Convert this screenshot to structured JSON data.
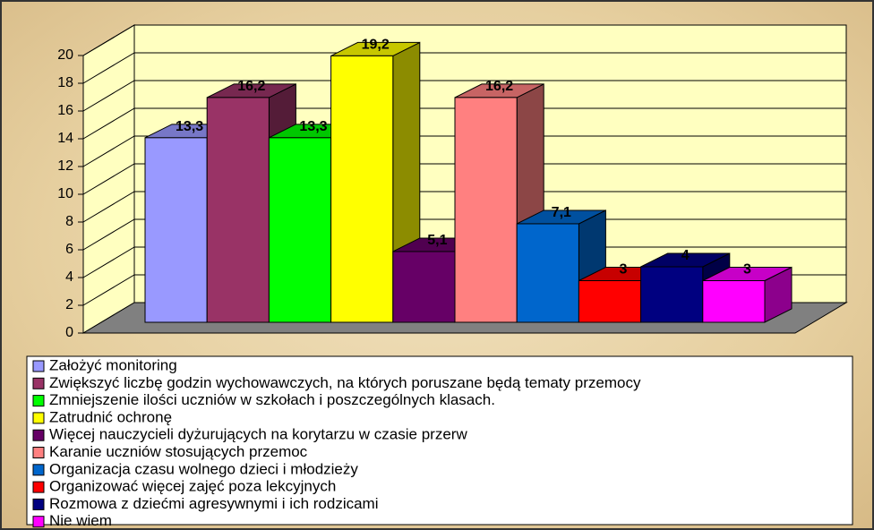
{
  "chart_data": {
    "type": "bar3d",
    "series": [
      {
        "name": "Założyć monitoring",
        "color": "#9999ff",
        "values": [
          13.3
        ],
        "value_labels": [
          "13,3"
        ]
      },
      {
        "name": "Zwiększyć liczbę godzin wychowawczych, na których poruszane będą tematy przemocy",
        "color": "#993366",
        "values": [
          16.2
        ],
        "value_labels": [
          "16,2"
        ]
      },
      {
        "name": "Zmniejszenie ilości uczniów w szkołach i poszczególnych klasach.",
        "color": "#00ff00",
        "values": [
          13.3
        ],
        "value_labels": [
          "13,3"
        ]
      },
      {
        "name": "Zatrudnić ochronę",
        "color": "#ffff00",
        "values": [
          19.2
        ],
        "value_labels": [
          "19,2"
        ]
      },
      {
        "name": "Więcej nauczycieli dyżurujących na korytarzu w czasie przerw",
        "color": "#660066",
        "values": [
          5.1
        ],
        "value_labels": [
          "5,1"
        ]
      },
      {
        "name": "Karanie uczniów stosujących przemoc",
        "color": "#ff8080",
        "values": [
          16.2
        ],
        "value_labels": [
          "16,2"
        ]
      },
      {
        "name": "Organizacja czasu wolnego dzieci i młodzieży",
        "color": "#0066cc",
        "values": [
          7.1
        ],
        "value_labels": [
          "7,1"
        ]
      },
      {
        "name": "Organizować więcej zajęć poza lekcyjnych",
        "color": "#ff0000",
        "values": [
          3
        ],
        "value_labels": [
          "3"
        ]
      },
      {
        "name": "Rozmowa z dziećmi agresywnymi i ich rodzicami",
        "color": "#000080",
        "values": [
          4
        ],
        "value_labels": [
          "4"
        ]
      },
      {
        "name": "Nie wiem",
        "color": "#ff00ff",
        "values": [
          3
        ],
        "value_labels": [
          "3"
        ]
      }
    ],
    "ylim": [
      0,
      20
    ],
    "yticks": [
      0,
      2,
      4,
      6,
      8,
      10,
      12,
      14,
      16,
      18,
      20
    ],
    "grid": true
  }
}
